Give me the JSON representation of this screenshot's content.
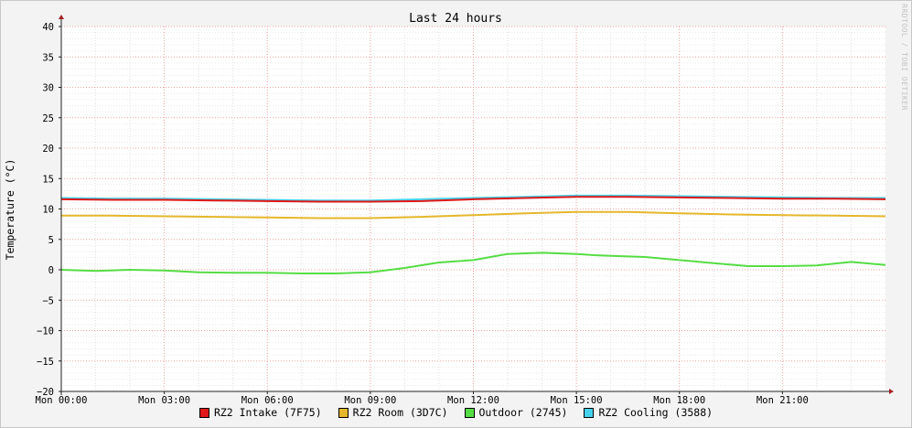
{
  "chart_data": {
    "type": "line",
    "title": "Last 24 hours",
    "ylabel": "Temperature (°C)",
    "xlabel": "",
    "ylim": [
      -20,
      40
    ],
    "y_ticks": [
      40,
      35,
      30,
      25,
      20,
      15,
      10,
      5,
      0,
      -5,
      -10,
      -15,
      -20
    ],
    "x_hours": [
      0,
      3,
      6,
      9,
      12,
      15,
      18,
      21
    ],
    "x_tick_labels": [
      "Mon 00:00",
      "Mon 03:00",
      "Mon 06:00",
      "Mon 09:00",
      "Mon 12:00",
      "Mon 15:00",
      "Mon 18:00",
      "Mon 21:00"
    ],
    "x_range_hours": [
      0,
      24
    ],
    "grid": true,
    "legend_position": "bottom",
    "series": [
      {
        "name": "RZ2 Intake (7F75)",
        "color": "#e01818",
        "x": [
          0,
          1.5,
          3,
          4.5,
          6,
          7.5,
          9,
          10.5,
          12,
          13.5,
          15,
          16.5,
          18,
          19.5,
          21,
          22.5,
          24
        ],
        "y": [
          11.6,
          11.5,
          11.5,
          11.4,
          11.3,
          11.2,
          11.2,
          11.3,
          11.6,
          11.8,
          12.0,
          12.0,
          11.9,
          11.8,
          11.7,
          11.7,
          11.6
        ]
      },
      {
        "name": "RZ2 Room (3D7C)",
        "color": "#e5b72b",
        "x": [
          0,
          1.5,
          3,
          4.5,
          6,
          7.5,
          9,
          10.5,
          12,
          13.5,
          15,
          16.5,
          18,
          19.5,
          21,
          22.5,
          24
        ],
        "y": [
          8.9,
          8.9,
          8.8,
          8.7,
          8.6,
          8.5,
          8.5,
          8.7,
          9.0,
          9.3,
          9.5,
          9.5,
          9.3,
          9.1,
          9.0,
          8.9,
          8.8
        ]
      },
      {
        "name": "Outdoor (2745)",
        "color": "#55dd44",
        "x": [
          0,
          1,
          2,
          3,
          4,
          5,
          6,
          7,
          8,
          9,
          10,
          11,
          12,
          12.5,
          13,
          14,
          15,
          15.5,
          16,
          17,
          18,
          19,
          20,
          21,
          22,
          23,
          24
        ],
        "y": [
          0.0,
          -0.2,
          0.0,
          -0.1,
          -0.4,
          -0.5,
          -0.5,
          -0.6,
          -0.6,
          -0.4,
          0.3,
          1.2,
          1.6,
          2.1,
          2.6,
          2.8,
          2.6,
          2.4,
          2.3,
          2.1,
          1.6,
          1.1,
          0.6,
          0.6,
          0.7,
          1.3,
          0.8
        ]
      },
      {
        "name": "RZ2 Cooling (3588)",
        "color": "#44d2ec",
        "x": [
          0,
          1.5,
          3,
          4.5,
          6,
          7.5,
          9,
          10.5,
          12,
          13.5,
          15,
          16.5,
          18,
          19.5,
          21,
          22.5,
          24
        ],
        "y": [
          11.8,
          11.7,
          11.7,
          11.6,
          11.5,
          11.4,
          11.4,
          11.6,
          11.8,
          12.0,
          12.2,
          12.2,
          12.1,
          12.0,
          11.9,
          11.8,
          11.8
        ]
      }
    ]
  },
  "watermark": "RRDTOOL / TOBI OETIKER"
}
